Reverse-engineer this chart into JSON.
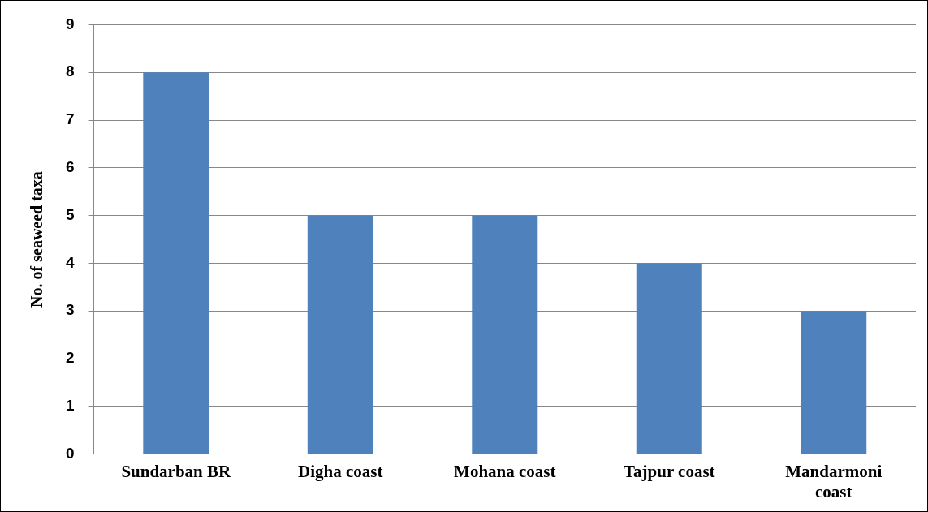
{
  "chart_data": {
    "type": "bar",
    "ylabel": "No. of seaweed taxa",
    "categories": [
      "Sundarban BR",
      "Digha coast",
      "Mohana coast",
      "Tajpur coast",
      "Mandarmoni coast"
    ],
    "values": [
      8,
      5,
      5,
      4,
      3
    ],
    "color": "#4f81bd",
    "ylim": [
      0,
      9
    ],
    "yticks": [
      0,
      1,
      2,
      3,
      4,
      5,
      6,
      7,
      8,
      9
    ],
    "grid": "y",
    "legend": false
  }
}
